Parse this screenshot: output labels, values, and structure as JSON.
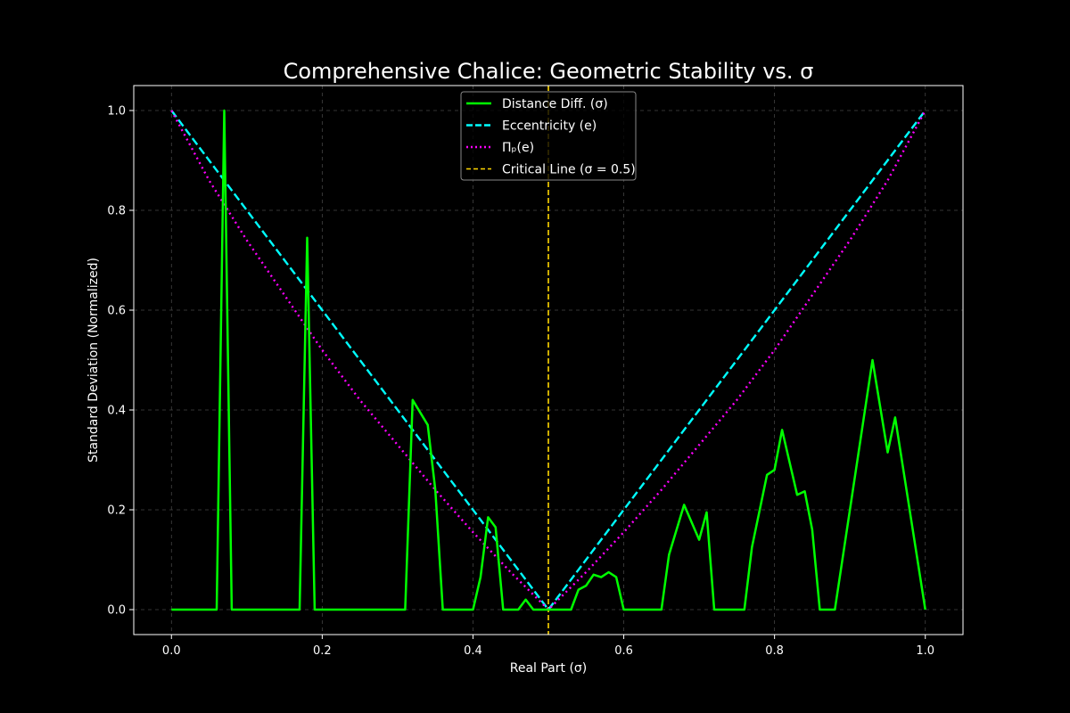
{
  "chart_data": {
    "type": "line",
    "title": "Comprehensive Chalice: Geometric Stability vs. σ",
    "xlabel": "Real Part (σ)",
    "ylabel": "Standard Deviation (Normalized)",
    "xlim": [
      -0.05,
      1.05
    ],
    "ylim": [
      -0.05,
      1.05
    ],
    "xticks": [
      0.0,
      0.2,
      0.4,
      0.6,
      0.8,
      1.0
    ],
    "xtick_labels": [
      "0.0",
      "0.2",
      "0.4",
      "0.6",
      "0.8",
      "1.0"
    ],
    "yticks": [
      0.0,
      0.2,
      0.4,
      0.6,
      0.8,
      1.0
    ],
    "ytick_labels": [
      "0.0",
      "0.2",
      "0.4",
      "0.6",
      "0.8",
      "1.0"
    ],
    "grid": true,
    "legend_position": "upper-center",
    "vline": {
      "x": 0.5,
      "name": "Critical Line (σ = 0.5)",
      "color": "#ffd700",
      "style": "dashed"
    },
    "series": [
      {
        "name": "Distance Diff. (σ)",
        "color": "#00ff00",
        "style": "solid",
        "x": [
          0.0,
          0.06,
          0.07,
          0.08,
          0.17,
          0.18,
          0.19,
          0.31,
          0.32,
          0.34,
          0.35,
          0.36,
          0.4,
          0.41,
          0.42,
          0.43,
          0.44,
          0.46,
          0.47,
          0.48,
          0.5,
          0.53,
          0.54,
          0.55,
          0.56,
          0.57,
          0.58,
          0.59,
          0.6,
          0.65,
          0.66,
          0.68,
          0.7,
          0.71,
          0.72,
          0.76,
          0.77,
          0.79,
          0.8,
          0.81,
          0.83,
          0.84,
          0.85,
          0.86,
          0.88,
          0.93,
          0.95,
          0.96,
          1.0
        ],
        "y": [
          0.0,
          0.0,
          1.0,
          0.0,
          0.0,
          0.745,
          0.0,
          0.0,
          0.42,
          0.37,
          0.24,
          0.0,
          0.0,
          0.065,
          0.185,
          0.165,
          0.0,
          0.0,
          0.02,
          0.0,
          0.0,
          0.0,
          0.04,
          0.048,
          0.07,
          0.065,
          0.075,
          0.065,
          0.0,
          0.0,
          0.11,
          0.21,
          0.14,
          0.195,
          0.0,
          0.0,
          0.125,
          0.27,
          0.28,
          0.36,
          0.23,
          0.237,
          0.16,
          0.0,
          0.0,
          0.5,
          0.315,
          0.385,
          0.0
        ]
      },
      {
        "name": "Eccentricity (e)",
        "color": "#00ffff",
        "style": "dashed",
        "x": [
          0.0,
          0.5,
          1.0
        ],
        "y": [
          1.0,
          0.0,
          1.0
        ]
      },
      {
        "name": "Πₚ(e)",
        "color": "#ff00ff",
        "style": "dotted",
        "x": [
          0.0,
          0.05,
          0.1,
          0.15,
          0.2,
          0.25,
          0.3,
          0.35,
          0.4,
          0.45,
          0.5,
          0.55,
          0.6,
          0.65,
          0.7,
          0.75,
          0.8,
          0.85,
          0.9,
          0.95,
          1.0
        ],
        "y": [
          1.0,
          0.86,
          0.74,
          0.63,
          0.52,
          0.42,
          0.33,
          0.24,
          0.155,
          0.075,
          0.0,
          0.075,
          0.155,
          0.24,
          0.33,
          0.42,
          0.52,
          0.63,
          0.74,
          0.86,
          1.0
        ]
      }
    ]
  }
}
